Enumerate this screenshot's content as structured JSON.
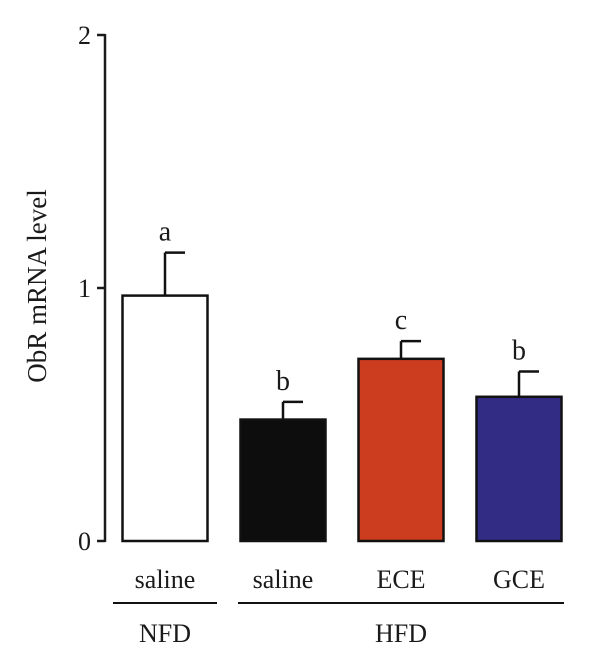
{
  "chart_data": {
    "type": "bar",
    "ylabel": "ObR mRNA level",
    "ylim": [
      0,
      2
    ],
    "yticks": [
      "0",
      "1",
      "2"
    ],
    "categories": [
      "saline",
      "saline",
      "ECE",
      "GCE"
    ],
    "groups": [
      {
        "label": "NFD",
        "members": [
          0
        ]
      },
      {
        "label": "HFD",
        "members": [
          1,
          2,
          3
        ]
      }
    ],
    "values": [
      0.97,
      0.48,
      0.72,
      0.57
    ],
    "errors": [
      0.17,
      0.07,
      0.07,
      0.1
    ],
    "significance": [
      "a",
      "b",
      "c",
      "b"
    ],
    "colors": [
      "#ffffff",
      "#0d0d0d",
      "#cc3d1f",
      "#332c85"
    ],
    "grid": false
  }
}
